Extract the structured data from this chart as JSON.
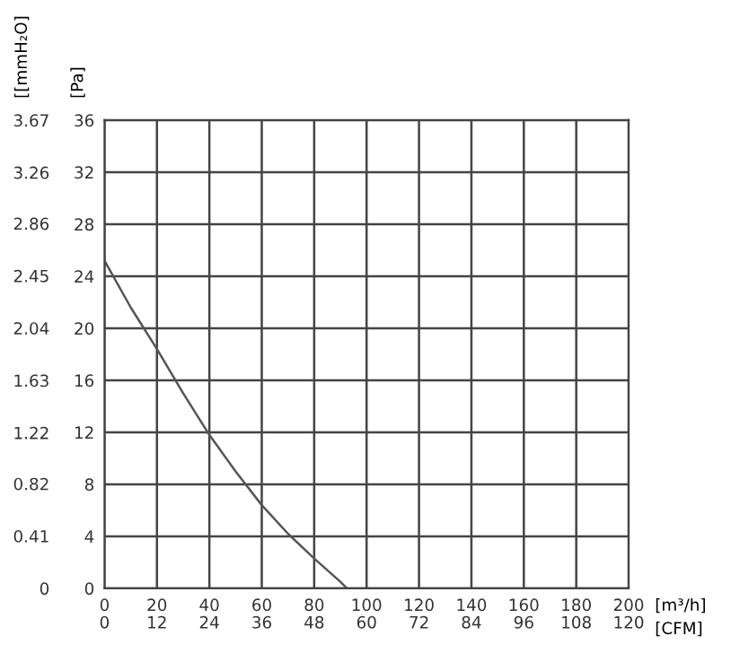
{
  "chart_data": {
    "type": "line",
    "ylabel": "[Pa]",
    "y2label": "[[mmH₂O]",
    "xlabel": "[m³/h]",
    "x2label": "[CFM]",
    "xlim": [
      0,
      200
    ],
    "xticks": [
      0,
      20,
      40,
      60,
      80,
      100,
      120,
      140,
      160,
      180,
      200
    ],
    "x2lim": [
      0,
      120
    ],
    "x2ticks": [
      0,
      12,
      24,
      36,
      48,
      60,
      72,
      84,
      96,
      108,
      120
    ],
    "ylim": [
      0,
      36
    ],
    "yticks": [
      0,
      4,
      8,
      12,
      16,
      20,
      24,
      28,
      32,
      36
    ],
    "y2lim": [
      0,
      3.67
    ],
    "y2ticks": [
      0,
      0.41,
      0.82,
      1.22,
      1.63,
      2.04,
      2.45,
      2.86,
      3.26,
      3.67
    ],
    "grid": true,
    "marker": "none",
    "line_style": "solid",
    "series": [
      {
        "color": "#555555",
        "x": [
          0,
          10,
          20,
          30,
          40,
          50,
          60,
          70,
          80,
          90,
          92.5
        ],
        "values": [
          25.2,
          21.6,
          18.4,
          15,
          11.8,
          9,
          6.4,
          4.2,
          2.3,
          0.5,
          0
        ]
      }
    ]
  }
}
